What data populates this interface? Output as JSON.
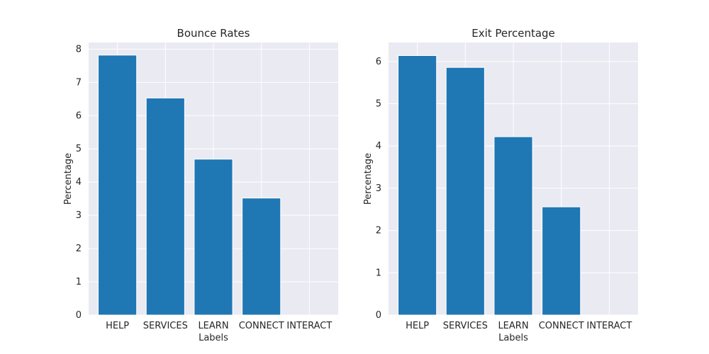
{
  "chart_data": [
    {
      "type": "bar",
      "title": "Bounce Rates",
      "xlabel": "Labels",
      "ylabel": "Percentage",
      "categories": [
        "HELP",
        "SERVICES",
        "LEARN",
        "CONNECT",
        "INTERACT"
      ],
      "values": [
        7.82,
        6.53,
        4.69,
        3.52,
        0
      ],
      "ylim": [
        0,
        8.2
      ],
      "yticks": [
        0,
        1,
        2,
        3,
        4,
        5,
        6,
        7,
        8
      ],
      "grid": true,
      "colors": {
        "bar": "#1f77b4",
        "background": "#eaeaf2",
        "grid": "#ffffff"
      }
    },
    {
      "type": "bar",
      "title": "Exit Percentage",
      "xlabel": "Labels",
      "ylabel": "Percentage",
      "categories": [
        "HELP",
        "SERVICES",
        "LEARN",
        "CONNECT",
        "INTERACT"
      ],
      "values": [
        6.14,
        5.86,
        4.22,
        2.56,
        0
      ],
      "ylim": [
        0,
        6.45
      ],
      "yticks": [
        0,
        1,
        2,
        3,
        4,
        5,
        6
      ],
      "grid": true,
      "colors": {
        "bar": "#1f77b4",
        "background": "#eaeaf2",
        "grid": "#ffffff"
      }
    }
  ]
}
